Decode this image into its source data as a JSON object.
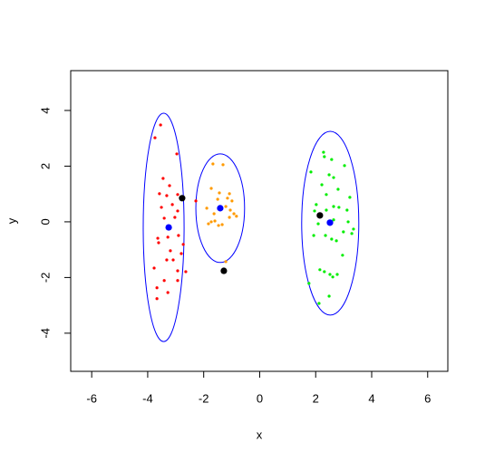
{
  "chart_data": {
    "type": "scatter",
    "xlabel": "x",
    "ylabel": "y",
    "xlim": [
      -6.75,
      6.72
    ],
    "ylim": [
      -5.37,
      5.43
    ],
    "xticks": [
      -6,
      -4,
      -2,
      0,
      2,
      4,
      6
    ],
    "yticks": [
      -4,
      -2,
      0,
      2,
      4
    ],
    "series": [
      {
        "color": "#ff0000",
        "size": 1.6,
        "x": [
          -3.54,
          -3.74,
          -2.96,
          -3.45,
          -3.22,
          -3.58,
          -3.32,
          -2.93,
          -3.12,
          -3.51,
          -2.93,
          -3.41,
          -3.03,
          -3.22,
          -3.64,
          -3.61,
          -3.28,
          -2.9,
          -2.73,
          -3.19,
          -3.32,
          -3.09,
          -2.8,
          -3.77,
          -2.93,
          -2.64,
          -3.41,
          -2.93,
          -3.67,
          -3.28,
          -3.67,
          -2.28
        ],
        "y": [
          3.48,
          3.02,
          2.44,
          1.56,
          1.3,
          1.01,
          0.94,
          0.98,
          0.62,
          0.52,
          0.39,
          0.13,
          0.16,
          -0.2,
          -0.59,
          -0.75,
          -0.55,
          -0.49,
          -0.81,
          -1.04,
          -1.37,
          -1.37,
          -1.14,
          -1.66,
          -1.76,
          -1.79,
          -2.11,
          -2.11,
          -2.37,
          -2.54,
          -2.76,
          0.75
        ]
      },
      {
        "color": "#ff9a00",
        "size": 1.6,
        "x": [
          -1.67,
          -1.31,
          -1.73,
          -1.44,
          -1.08,
          -1.5,
          -1.15,
          -0.99,
          -1.89,
          -1.21,
          -1.05,
          -1.63,
          -0.92,
          -0.83,
          -1.08,
          -1.6,
          -1.83,
          -1.47,
          -1.34,
          -1.73,
          -1.21
        ],
        "y": [
          2.08,
          2.05,
          1.2,
          1.04,
          1.01,
          0.81,
          0.85,
          0.75,
          0.49,
          0.55,
          0.42,
          0.29,
          0.29,
          0.2,
          0.16,
          0.03,
          -0.07,
          -0.13,
          -0.1,
          0.0,
          -1.43
        ]
      },
      {
        "color": "#00ee00",
        "size": 1.6,
        "x": [
          2.28,
          2.31,
          2.57,
          3.03,
          1.83,
          2.48,
          2.64,
          2.22,
          2.8,
          3.22,
          2.38,
          2.02,
          2.64,
          2.83,
          3.12,
          1.96,
          2.38,
          3.16,
          2.64,
          2.09,
          3.35,
          2.99,
          3.29,
          1.93,
          2.35,
          2.57,
          2.74,
          2.96,
          2.15,
          2.31,
          2.51,
          2.77,
          2.61,
          1.76,
          2.48,
          2.12
        ],
        "y": [
          2.5,
          2.34,
          2.24,
          2.02,
          1.79,
          1.69,
          1.59,
          1.33,
          1.17,
          0.88,
          0.98,
          0.62,
          0.55,
          0.52,
          0.42,
          0.39,
          0.42,
          0.0,
          0.07,
          -0.07,
          -0.26,
          -0.36,
          -0.42,
          -0.49,
          -0.49,
          -0.62,
          -0.68,
          -1.2,
          -1.72,
          -1.79,
          -1.89,
          -1.89,
          -1.98,
          -2.21,
          -2.67,
          -2.93
        ]
      },
      {
        "color": "#000000",
        "size": 3.6,
        "x": [
          -2.77,
          -1.28,
          2.15
        ],
        "y": [
          0.85,
          -1.76,
          0.23
        ]
      },
      {
        "color": "#0000ff",
        "size": 3.6,
        "x": [
          -3.25,
          -1.41,
          2.51
        ],
        "y": [
          -0.2,
          0.49,
          -0.03
        ]
      }
    ],
    "ellipses": [
      {
        "color": "#0000ff",
        "cx": -3.43,
        "cy": -0.2,
        "rx": 0.73,
        "ry": 4.1
      },
      {
        "color": "#0000ff",
        "cx": -1.41,
        "cy": 0.49,
        "rx": 0.87,
        "ry": 1.95
      },
      {
        "color": "#0000ff",
        "cx": 2.52,
        "cy": -0.05,
        "rx": 1.02,
        "ry": 3.3
      }
    ]
  }
}
